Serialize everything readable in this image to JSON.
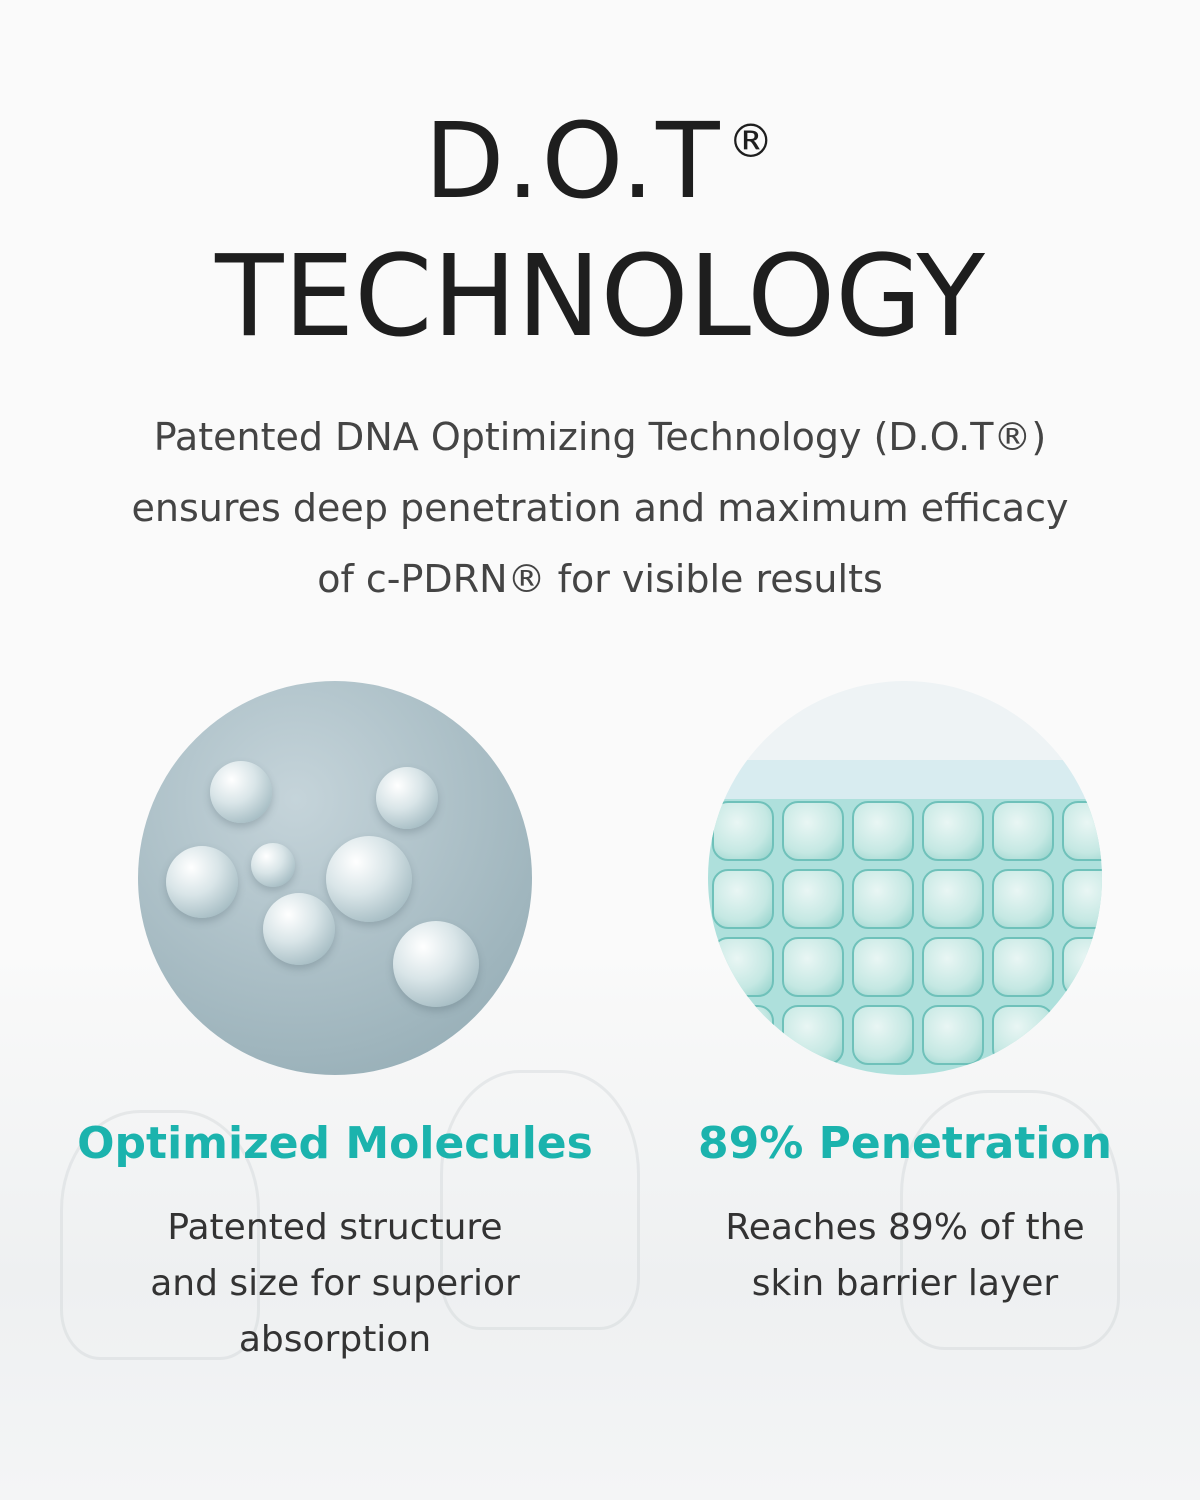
{
  "title": {
    "line1": "D.O.T",
    "registered": "®",
    "line2": "TECHNOLOGY"
  },
  "description": [
    "Patented DNA Optimizing Technology (D.O.T®)",
    "ensures deep penetration and maximum efficacy",
    "of c-PDRN®  for visible results"
  ],
  "features": [
    {
      "heading": "Optimized Molecules",
      "body": [
        "Patented structure",
        "and size for superior",
        "absorption"
      ],
      "image": "molecule-image"
    },
    {
      "heading": "89% Penetration",
      "body": [
        "Reaches 89% of the",
        "skin barrier layer"
      ],
      "image": "skin-cells-image"
    }
  ],
  "colors": {
    "accent": "#1bb3ad",
    "title": "#1e1e1e",
    "text": "#444444"
  }
}
